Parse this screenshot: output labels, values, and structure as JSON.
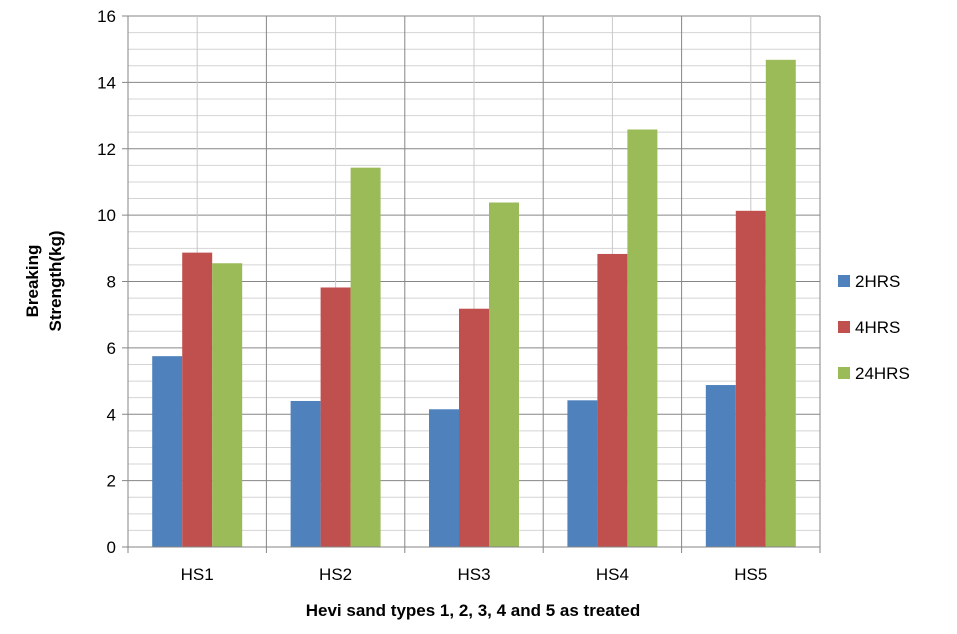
{
  "chart_data": {
    "type": "bar",
    "title": "",
    "xlabel": "Hevi sand types 1, 2, 3, 4 and 5 as treated",
    "ylabel_lines": [
      "Breaking",
      "Strength(kg)"
    ],
    "ylim": [
      0,
      16
    ],
    "yticks": [
      0,
      2,
      4,
      6,
      8,
      10,
      12,
      14,
      16
    ],
    "minor_grid_step": 0.5,
    "grid": true,
    "legend_position": "right",
    "categories": [
      "HS1",
      "HS2",
      "HS3",
      "HS4",
      "HS5"
    ],
    "series": [
      {
        "name": "2HRS",
        "color": "#4F81BD",
        "values": [
          5.75,
          4.4,
          4.15,
          4.42,
          4.88
        ]
      },
      {
        "name": "4HRS",
        "color": "#C0504D",
        "values": [
          8.87,
          7.82,
          7.18,
          8.83,
          10.13
        ]
      },
      {
        "name": "24HRS",
        "color": "#9BBB59",
        "values": [
          8.55,
          11.43,
          10.38,
          12.58,
          14.68
        ]
      }
    ]
  }
}
